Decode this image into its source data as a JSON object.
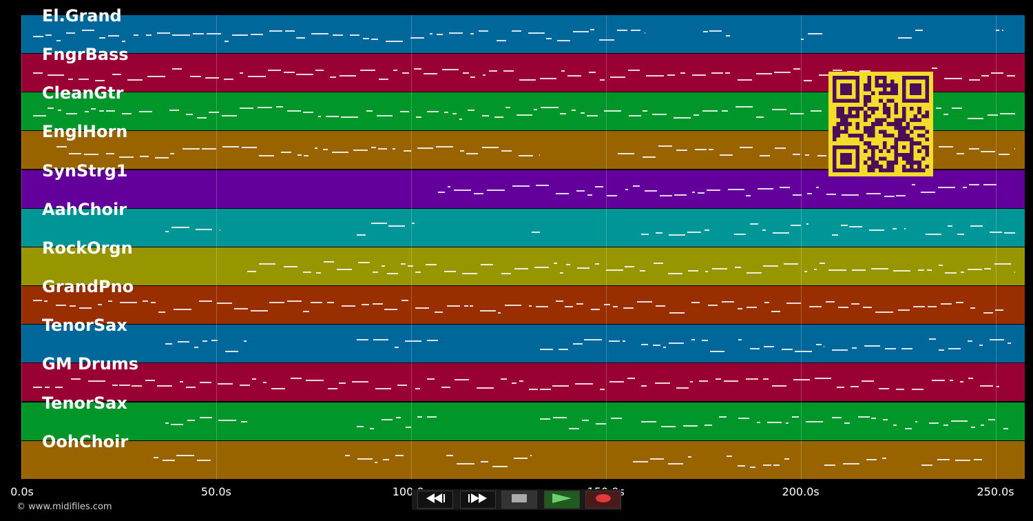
{
  "app": {
    "copyright": "© www.midifiles.com"
  },
  "tracks": [
    {
      "name": "El.Grand",
      "color": "#00679b"
    },
    {
      "name": "FngrBass",
      "color": "#990033"
    },
    {
      "name": "CleanGtr",
      "color": "#00962a"
    },
    {
      "name": "EnglHorn",
      "color": "#996300"
    },
    {
      "name": "SynStrg1",
      "color": "#63009b"
    },
    {
      "name": "AahChoir",
      "color": "#009698"
    },
    {
      "name": "RockOrgn",
      "color": "#989600"
    },
    {
      "name": "GrandPno",
      "color": "#992f00"
    },
    {
      "name": "TenorSax",
      "color": "#00679b"
    },
    {
      "name": "GM Drums",
      "color": "#990033"
    },
    {
      "name": "TenorSax",
      "color": "#00962a"
    },
    {
      "name": "OohChoir",
      "color": "#996300"
    }
  ],
  "timeline": {
    "ticks": [
      "0.0s",
      "50.0s",
      "100.0s",
      "150.0s",
      "200.0s",
      "250.0s"
    ],
    "tick_values": [
      0,
      50,
      100,
      150,
      200,
      250
    ],
    "range_seconds": [
      0,
      257.5
    ]
  },
  "transport": {
    "buttons": [
      {
        "name": "rewind",
        "icon": "rewind-icon"
      },
      {
        "name": "fast-forward",
        "icon": "fast-forward-icon"
      },
      {
        "name": "stop",
        "icon": "stop-icon"
      },
      {
        "name": "play",
        "icon": "play-icon"
      },
      {
        "name": "record",
        "icon": "record-icon"
      }
    ]
  },
  "overlay": {
    "qr_code": {
      "icon": "qr-code-icon",
      "fg": "#4b0f5a",
      "bg": "#f5dc2a"
    }
  },
  "notes": [
    {
      "track": 0,
      "segments": [
        [
          3,
          160
        ],
        [
          175,
          182
        ],
        [
          200,
          206
        ],
        [
          225,
          233
        ],
        [
          250,
          252
        ]
      ]
    },
    {
      "track": 1,
      "segments": [
        [
          3,
          255
        ]
      ]
    },
    {
      "track": 2,
      "segments": [
        [
          3,
          34
        ],
        [
          38,
          255
        ]
      ]
    },
    {
      "track": 3,
      "segments": [
        [
          9,
          133
        ],
        [
          153,
          255
        ]
      ]
    },
    {
      "track": 4,
      "segments": [
        [
          107,
          252
        ]
      ]
    },
    {
      "track": 5,
      "segments": [
        [
          37,
          51
        ],
        [
          86,
          101
        ],
        [
          131,
          133
        ],
        [
          159,
          177
        ],
        [
          183,
          202
        ],
        [
          208,
          227
        ],
        [
          232,
          255
        ]
      ]
    },
    {
      "track": 6,
      "segments": [
        [
          58,
          255
        ]
      ]
    },
    {
      "track": 7,
      "segments": [
        [
          3,
          252
        ]
      ]
    },
    {
      "track": 8,
      "segments": [
        [
          37,
          58
        ],
        [
          86,
          107
        ],
        [
          133,
          155
        ],
        [
          159,
          181
        ],
        [
          184,
          206
        ],
        [
          208,
          230
        ],
        [
          233,
          254
        ]
      ]
    },
    {
      "track": 9,
      "segments": [
        [
          3,
          251
        ]
      ]
    },
    {
      "track": 10,
      "segments": [
        [
          37,
          58
        ],
        [
          86,
          107
        ],
        [
          133,
          155
        ],
        [
          159,
          181
        ],
        [
          184,
          206
        ],
        [
          208,
          230
        ],
        [
          233,
          254
        ]
      ]
    },
    {
      "track": 11,
      "segments": [
        [
          34,
          49
        ],
        [
          83,
          98
        ],
        [
          109,
          131
        ],
        [
          157,
          172
        ],
        [
          181,
          197
        ],
        [
          206,
          222
        ],
        [
          231,
          247
        ]
      ]
    }
  ]
}
